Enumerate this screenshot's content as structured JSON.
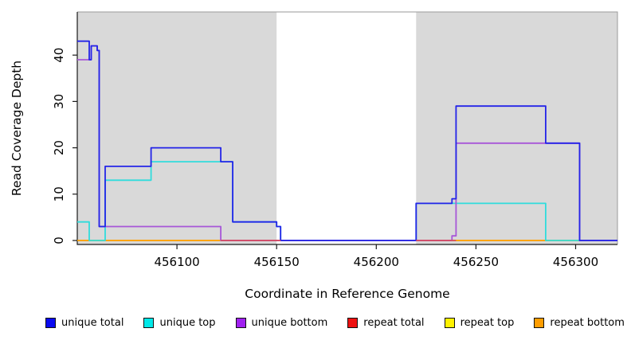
{
  "chart_data": {
    "type": "line",
    "subtype": "step-coverage",
    "title": "",
    "xlabel": "Coordinate in Reference Genome",
    "ylabel": "Read Coverage Depth",
    "xlim": [
      456050,
      456321
    ],
    "ylim": [
      0,
      49
    ],
    "x_ticks": [
      456100,
      456150,
      456200,
      456250,
      456300
    ],
    "y_ticks": [
      0,
      10,
      20,
      30,
      40
    ],
    "grid": false,
    "background_color": "#ffffff",
    "shaded_regions": {
      "color": "#d9d9d9",
      "ranges": [
        [
          456050,
          456150
        ],
        [
          456220,
          456321
        ]
      ]
    },
    "series": [
      {
        "name": "repeat top",
        "color": "#ffe81a",
        "steps": [
          [
            456050,
            0
          ],
          [
            456321,
            0
          ]
        ]
      },
      {
        "name": "repeat bottom",
        "color": "#ff9b06",
        "steps": [
          [
            456050,
            0
          ],
          [
            456321,
            0
          ]
        ]
      },
      {
        "name": "unique top",
        "color": "#30dcdc",
        "steps": [
          [
            456050,
            4
          ],
          [
            456056,
            0
          ],
          [
            456064,
            13
          ],
          [
            456087,
            17
          ],
          [
            456128,
            4
          ],
          [
            456150,
            3
          ],
          [
            456152,
            0
          ],
          [
            456220,
            8
          ],
          [
            456285,
            0
          ],
          [
            456321,
            0
          ]
        ]
      },
      {
        "name": "unique bottom",
        "color": "#a756d8",
        "steps": [
          [
            456050,
            39
          ],
          [
            456057,
            42
          ],
          [
            456060,
            41
          ],
          [
            456061,
            3
          ],
          [
            456122,
            0
          ],
          [
            456238,
            1
          ],
          [
            456240,
            21
          ],
          [
            456302,
            0
          ],
          [
            456321,
            0
          ]
        ]
      },
      {
        "name": "unique total",
        "color": "#2424e8",
        "steps": [
          [
            456050,
            43
          ],
          [
            456056,
            39
          ],
          [
            456057,
            42
          ],
          [
            456060,
            41
          ],
          [
            456061,
            3
          ],
          [
            456064,
            16
          ],
          [
            456087,
            20
          ],
          [
            456122,
            17
          ],
          [
            456128,
            4
          ],
          [
            456150,
            3
          ],
          [
            456152,
            0
          ],
          [
            456220,
            8
          ],
          [
            456238,
            9
          ],
          [
            456240,
            29
          ],
          [
            456285,
            21
          ],
          [
            456302,
            0
          ],
          [
            456321,
            0
          ]
        ]
      },
      {
        "name": "repeat total",
        "color": "#d44d63",
        "steps": [
          [
            456050,
            0
          ],
          [
            456321,
            0
          ]
        ],
        "visible_zero_segments": [
          [
            456122,
            456152
          ],
          [
            456220,
            456240
          ]
        ]
      }
    ],
    "legend": {
      "position": "bottom",
      "items": [
        {
          "label": "unique total",
          "color": "#0a0af0"
        },
        {
          "label": "unique top",
          "color": "#00e8e8"
        },
        {
          "label": "unique bottom",
          "color": "#a020f0"
        },
        {
          "label": "repeat total",
          "color": "#ee1111"
        },
        {
          "label": "repeat top",
          "color": "#fff200"
        },
        {
          "label": "repeat bottom",
          "color": "#ff9d00"
        }
      ]
    }
  }
}
